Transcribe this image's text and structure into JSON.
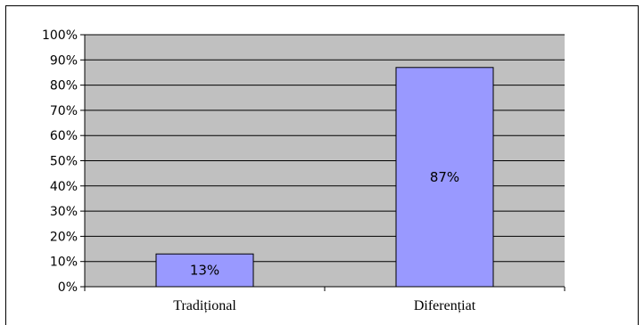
{
  "chart_data": {
    "type": "bar",
    "categories": [
      "Tradițional",
      "Diferențiat"
    ],
    "values": [
      13,
      87
    ],
    "data_labels": [
      "13%",
      "87%"
    ],
    "ylim": [
      0,
      100
    ],
    "y_ticks": [
      "0%",
      "10%",
      "20%",
      "30%",
      "40%",
      "50%",
      "60%",
      "70%",
      "80%",
      "90%",
      "100%"
    ],
    "grid": true,
    "legend": "none"
  },
  "colors": {
    "plot_area": "#c0c0c0",
    "bar_fill": "#9999ff",
    "bar_stroke": "#000000",
    "gridline": "#000000"
  }
}
